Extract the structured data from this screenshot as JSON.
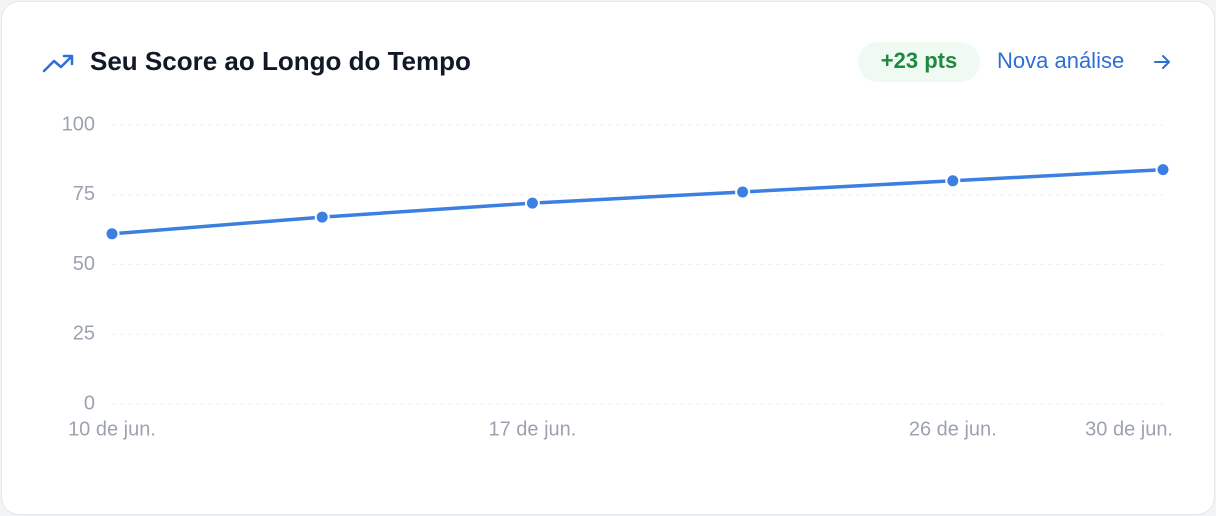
{
  "header": {
    "title": "Seu Score ao Longo do Tempo",
    "badge": "+23 pts",
    "link": "Nova análise"
  },
  "chart_data": {
    "type": "line",
    "categories": [
      "10 de jun.",
      null,
      "17 de jun.",
      null,
      "26 de jun.",
      "30 de jun."
    ],
    "series": [
      {
        "color": "#3b7fe0",
        "values": [
          61,
          67,
          72,
          76,
          80,
          84
        ]
      }
    ],
    "ylim": [
      0,
      100
    ],
    "yticks": [
      0,
      25,
      50,
      75,
      100
    ],
    "grid": true
  }
}
